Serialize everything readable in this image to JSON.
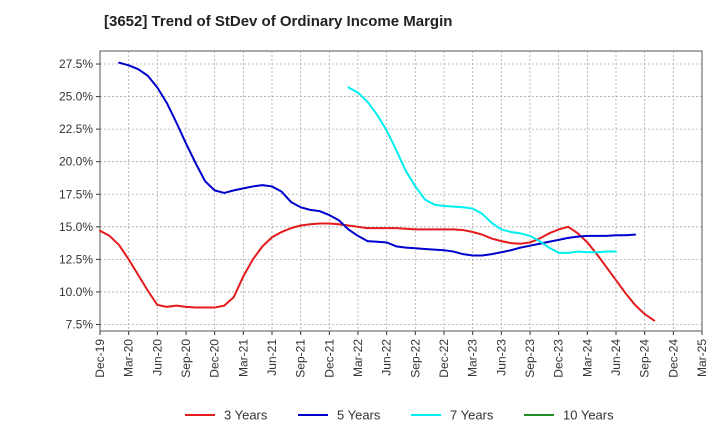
{
  "chart_data": {
    "type": "line",
    "title": "[3652]  Trend of StDev of Ordinary Income Margin",
    "xlabel": "",
    "ylabel": "",
    "ylim": [
      7.0,
      28.5
    ],
    "yticks": [
      7.5,
      10.0,
      12.5,
      15.0,
      17.5,
      20.0,
      22.5,
      25.0,
      27.5
    ],
    "ytick_labels": [
      "7.5%",
      "10.0%",
      "12.5%",
      "15.0%",
      "17.5%",
      "20.0%",
      "22.5%",
      "25.0%",
      "27.5%"
    ],
    "xtick_labels": [
      "Dec-19",
      "Mar-20",
      "Jun-20",
      "Sep-20",
      "Dec-20",
      "Mar-21",
      "Jun-21",
      "Sep-21",
      "Dec-21",
      "Mar-22",
      "Jun-22",
      "Sep-22",
      "Dec-22",
      "Mar-23",
      "Jun-23",
      "Sep-23",
      "Dec-23",
      "Mar-24",
      "Jun-24",
      "Sep-24",
      "Dec-24",
      "Mar-25"
    ],
    "grid": true,
    "legend_position": "bottom",
    "series": [
      {
        "name": "3 Years",
        "color": "#e41a1c",
        "start_index": 0,
        "values": [
          14.7,
          14.3,
          13.6,
          12.5,
          11.3,
          10.1,
          9.0,
          8.85,
          8.95,
          8.85,
          8.8,
          8.8,
          8.8,
          8.95,
          9.6,
          11.2,
          12.5,
          13.5,
          14.2,
          14.6,
          14.9,
          15.1,
          15.2,
          15.25,
          15.25,
          15.2,
          15.1,
          15.0,
          14.9,
          14.9,
          14.9,
          14.9,
          14.85,
          14.8,
          14.8,
          14.8,
          14.8,
          14.8,
          14.75,
          14.6,
          14.4,
          14.1,
          13.9,
          13.75,
          13.7,
          13.8,
          14.1,
          14.5,
          14.8,
          15.0,
          14.5,
          13.8,
          12.9,
          11.9,
          10.9,
          9.9,
          9.0,
          8.3,
          7.8
        ]
      },
      {
        "name": "5 Years",
        "color": "#0000cc",
        "start_index": 2,
        "values": [
          27.6,
          27.4,
          27.1,
          26.6,
          25.7,
          24.5,
          23.0,
          21.4,
          19.9,
          18.5,
          17.8,
          17.6,
          17.8,
          17.95,
          18.1,
          18.2,
          18.1,
          17.7,
          16.9,
          16.5,
          16.3,
          16.2,
          15.9,
          15.5,
          14.8,
          14.3,
          13.9,
          13.85,
          13.8,
          13.5,
          13.4,
          13.35,
          13.3,
          13.25,
          13.2,
          13.1,
          12.9,
          12.8,
          12.8,
          12.9,
          13.05,
          13.2,
          13.4,
          13.55,
          13.7,
          13.85,
          14.0,
          14.15,
          14.25,
          14.3,
          14.3,
          14.3,
          14.35,
          14.35,
          14.4
        ]
      },
      {
        "name": "7 Years",
        "color": "#00eeee",
        "start_index": 26,
        "values": [
          25.7,
          25.3,
          24.6,
          23.6,
          22.4,
          20.9,
          19.3,
          18.1,
          17.1,
          16.7,
          16.6,
          16.55,
          16.5,
          16.4,
          16.0,
          15.3,
          14.8,
          14.6,
          14.5,
          14.3,
          13.9,
          13.4,
          13.0,
          13.0,
          13.1,
          13.05,
          13.05,
          13.1,
          13.1
        ]
      },
      {
        "name": "10 Years",
        "color": "#228b22",
        "start_index": 0,
        "values": []
      }
    ]
  }
}
